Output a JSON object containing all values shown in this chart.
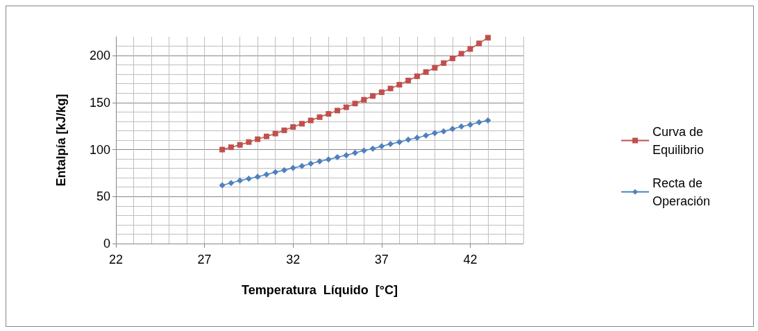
{
  "chart_data": {
    "type": "line",
    "xlabel": "Temperatura  Líquido  [°C]",
    "ylabel": "Entalpía [kJ/kg]",
    "xlim": [
      22,
      45
    ],
    "xticks": [
      22,
      27,
      32,
      37,
      42
    ],
    "ylim": [
      0,
      220
    ],
    "yticks": [
      0,
      50,
      100,
      150,
      200
    ],
    "grid": true,
    "legend": "right",
    "series": [
      {
        "name": "Curva de Equilibrio",
        "color": "#c0504d",
        "marker": "square",
        "x": [
          28,
          28.5,
          29,
          29.5,
          30,
          30.5,
          31,
          31.5,
          32,
          32.5,
          33,
          33.5,
          34,
          34.5,
          35,
          35.5,
          36,
          36.5,
          37,
          37.5,
          38,
          38.5,
          39,
          39.5,
          40,
          40.5,
          41,
          41.5,
          42,
          42.5,
          43
        ],
        "values": [
          100,
          102.5,
          105,
          108,
          111,
          114,
          117,
          120.5,
          124,
          127.5,
          131,
          134.5,
          138,
          141.5,
          145,
          149,
          153,
          157,
          161,
          165,
          169,
          173.5,
          178,
          182.5,
          187,
          192,
          197,
          202,
          207,
          213,
          219
        ]
      },
      {
        "name": "Recta de Operación",
        "color": "#4f81bd",
        "marker": "diamond",
        "x": [
          28,
          28.5,
          29,
          29.5,
          30,
          30.5,
          31,
          31.5,
          32,
          32.5,
          33,
          33.5,
          34,
          34.5,
          35,
          35.5,
          36,
          36.5,
          37,
          37.5,
          38,
          38.5,
          39,
          39.5,
          40,
          40.5,
          41,
          41.5,
          42,
          42.5,
          43
        ],
        "values": [
          62,
          64.5,
          67,
          69,
          71,
          73.5,
          76,
          78,
          80.5,
          82.5,
          85,
          87.5,
          89.5,
          92,
          94,
          96.5,
          99,
          101,
          103.5,
          106,
          108,
          110.5,
          112.5,
          115,
          117.5,
          119.5,
          122,
          124.5,
          126.5,
          129,
          131
        ]
      }
    ]
  }
}
